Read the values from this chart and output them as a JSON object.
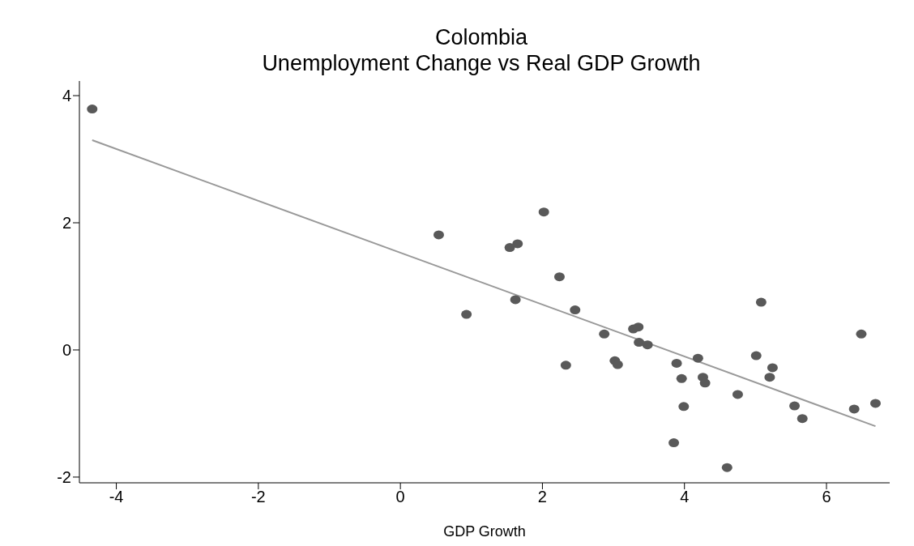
{
  "chart_data": {
    "type": "scatter",
    "title": "Colombia",
    "subtitle": "Unemployment Change vs Real GDP Growth",
    "xlabel": "GDP Growth",
    "xlim": [
      -4.52,
      6.89
    ],
    "xticks": [
      -4,
      -2,
      0,
      2,
      4,
      6
    ],
    "ylim": [
      -2.09,
      4.23
    ],
    "yticks": [
      -2,
      0,
      2,
      4
    ],
    "grid": false,
    "legend": false,
    "marker": "circle",
    "series": [
      {
        "color": "#595959",
        "x": [
          -4.34,
          0.54,
          0.93,
          1.54,
          1.65,
          1.62,
          2.02,
          2.24,
          2.33,
          2.46,
          2.87,
          3.02,
          3.06,
          3.28,
          3.35,
          3.36,
          3.48,
          3.85,
          3.89,
          3.96,
          3.99,
          4.19,
          4.26,
          4.29,
          4.6,
          4.75,
          5.01,
          5.08,
          5.2,
          5.24,
          5.55,
          5.66,
          6.39,
          6.49,
          6.69
        ],
        "values": [
          3.79,
          1.81,
          0.56,
          1.61,
          1.67,
          0.79,
          2.17,
          1.15,
          -0.24,
          0.63,
          0.25,
          -0.17,
          -0.23,
          0.33,
          0.36,
          0.12,
          0.08,
          -1.46,
          -0.21,
          -0.45,
          -0.89,
          -0.13,
          -0.43,
          -0.52,
          -1.85,
          -0.7,
          -0.09,
          0.75,
          -0.43,
          -0.28,
          -0.88,
          -1.08,
          -0.93,
          0.25,
          -0.84
        ]
      },
      {
        "type": "line",
        "marker": "none",
        "color": "#999999",
        "x": [
          -4.34,
          6.69
        ],
        "values": [
          3.3,
          -1.2
        ]
      }
    ]
  }
}
